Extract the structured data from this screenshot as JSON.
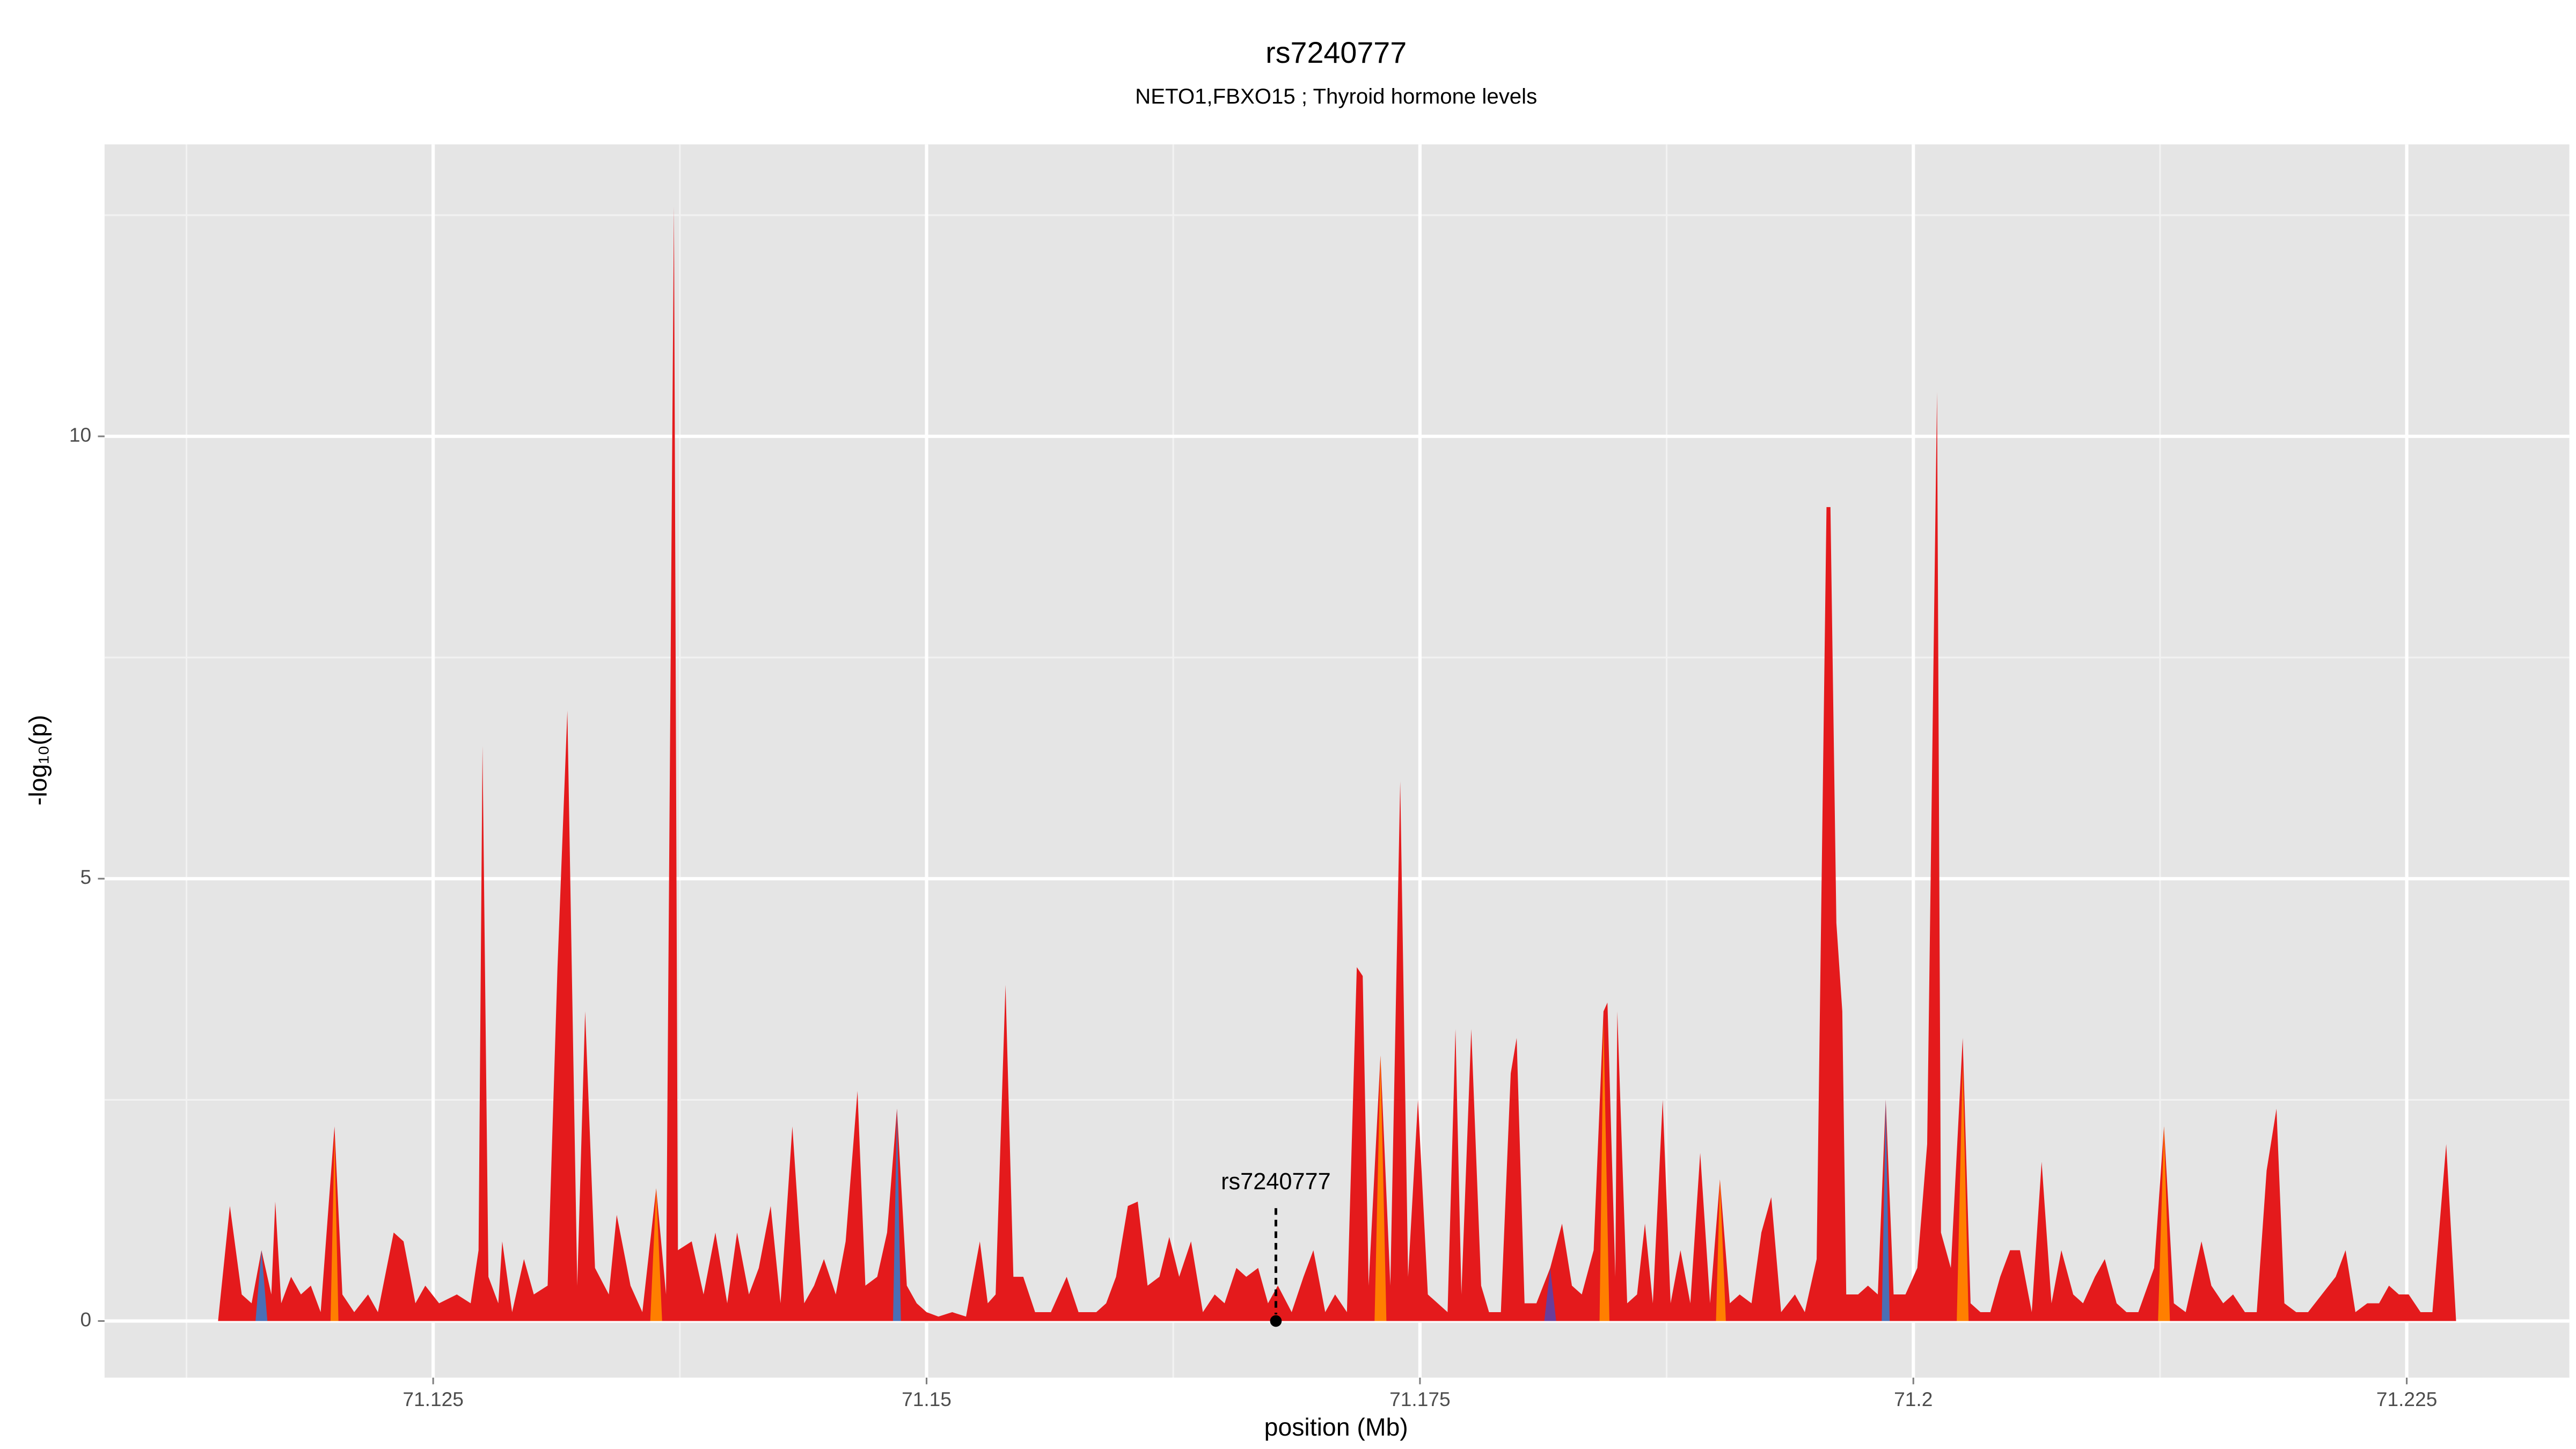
{
  "chart_data": {
    "type": "area",
    "title": "rs7240777",
    "subtitle": "NETO1,FBXO15 ; Thyroid hormone levels",
    "x_label": "position (Mb)",
    "y_label": "-log₁₀(p)",
    "xlim": [
      71.10835,
      71.23324
    ],
    "ylim": [
      -0.64,
      13.3
    ],
    "xticks": [
      71.125,
      71.15,
      71.175,
      71.2,
      71.225
    ],
    "yticks": [
      0,
      5,
      10
    ],
    "xminorticks": [
      71.1125,
      71.1375,
      71.1625,
      71.1875,
      71.2125
    ],
    "yminorticks": [
      2.5,
      7.5,
      12.5
    ],
    "grid": true,
    "series": [
      {
        "color": "#e41a1c",
        "x": [
          71.1141,
          71.1147,
          71.1153,
          71.1158,
          71.1163,
          71.1168,
          71.117,
          71.1173,
          71.1178,
          71.1183,
          71.1188,
          71.1193,
          71.12,
          71.1204,
          71.121,
          71.1217,
          71.1222,
          71.123,
          71.1235,
          71.1241,
          71.1246,
          71.1253,
          71.1262,
          71.1269,
          71.1273,
          71.1275,
          71.1278,
          71.1283,
          71.1285,
          71.129,
          71.1296,
          71.1301,
          71.1308,
          71.1313,
          71.1318,
          71.1323,
          71.1327,
          71.1332,
          71.1339,
          71.1343,
          71.135,
          71.1356,
          71.1363,
          71.1368,
          71.1372,
          71.1374,
          71.1381,
          71.1387,
          71.1393,
          71.1399,
          71.1404,
          71.141,
          71.1415,
          71.1421,
          71.1426,
          71.1432,
          71.1438,
          71.1443,
          71.1448,
          71.1454,
          71.1459,
          71.1465,
          71.1469,
          71.1475,
          71.148,
          71.1485,
          71.149,
          71.1495,
          71.15,
          71.1506,
          71.1513,
          71.152,
          71.1527,
          71.1531,
          71.1535,
          71.154,
          71.1544,
          71.1549,
          71.1555,
          71.1563,
          71.1571,
          71.1577,
          71.1586,
          71.1591,
          71.1596,
          71.1602,
          71.1607,
          71.1612,
          71.1618,
          71.1623,
          71.1628,
          71.1634,
          71.164,
          71.1646,
          71.1651,
          71.1657,
          71.1662,
          71.1668,
          71.1673,
          71.1678,
          71.1685,
          71.1691,
          71.1696,
          71.1702,
          71.1707,
          71.1713,
          71.1718,
          71.1721,
          71.1724,
          71.173,
          71.1735,
          71.174,
          71.1744,
          71.1749,
          71.1754,
          71.1759,
          71.1764,
          71.1768,
          71.1771,
          71.1776,
          71.1781,
          71.1785,
          71.1791,
          71.1796,
          71.1799,
          71.1803,
          71.1809,
          71.1816,
          71.1822,
          71.1827,
          71.1832,
          71.1838,
          71.1843,
          71.1845,
          71.1849,
          71.185,
          71.1855,
          71.186,
          71.1864,
          71.1868,
          71.1873,
          71.1877,
          71.1882,
          71.1887,
          71.1892,
          71.1897,
          71.1902,
          71.1907,
          71.1912,
          71.1918,
          71.1923,
          71.1928,
          71.1933,
          71.194,
          71.1945,
          71.1951,
          71.1956,
          71.1958,
          71.1961,
          71.1964,
          71.1966,
          71.1972,
          71.1977,
          71.1982,
          71.1986,
          71.199,
          71.1996,
          71.2002,
          71.2007,
          71.2012,
          71.2014,
          71.2019,
          71.2025,
          71.2029,
          71.2034,
          71.2039,
          71.2044,
          71.2049,
          71.2054,
          71.206,
          71.2065,
          71.207,
          71.2075,
          71.2081,
          71.2086,
          71.2092,
          71.2097,
          71.2103,
          71.2108,
          71.2114,
          71.2122,
          71.2127,
          71.2132,
          71.2138,
          71.2146,
          71.2151,
          71.2157,
          71.2162,
          71.2168,
          71.2174,
          71.2179,
          71.2184,
          71.2188,
          71.2194,
          71.22,
          71.2207,
          71.2214,
          71.2219,
          71.2224,
          71.223,
          71.2236,
          71.2241,
          71.2246,
          71.2251,
          71.2257,
          71.2263,
          71.227,
          71.2275
        ],
        "values": [
          0,
          1.3,
          0.3,
          0.2,
          0.8,
          0.3,
          1.35,
          0.2,
          0.5,
          0.3,
          0.4,
          0.1,
          2.2,
          0.3,
          0.1,
          0.3,
          0.1,
          1.0,
          0.9,
          0.2,
          0.4,
          0.2,
          0.3,
          0.2,
          0.8,
          6.5,
          0.5,
          0.2,
          0.9,
          0.1,
          0.7,
          0.3,
          0.4,
          4.0,
          6.9,
          0.4,
          3.5,
          0.6,
          0.3,
          1.2,
          0.4,
          0.1,
          1.5,
          0.3,
          12.6,
          0.8,
          0.9,
          0.3,
          1.0,
          0.2,
          1.0,
          0.3,
          0.6,
          1.3,
          0.2,
          2.2,
          0.2,
          0.4,
          0.7,
          0.3,
          0.9,
          2.6,
          0.4,
          0.5,
          1.0,
          2.4,
          0.4,
          0.2,
          0.1,
          0.05,
          0.1,
          0.05,
          0.9,
          0.2,
          0.3,
          3.8,
          0.5,
          0.5,
          0.1,
          0.1,
          0.5,
          0.1,
          0.1,
          0.2,
          0.5,
          1.3,
          1.35,
          0.4,
          0.5,
          0.95,
          0.5,
          0.9,
          0.1,
          0.3,
          0.2,
          0.6,
          0.5,
          0.6,
          0.2,
          0.4,
          0.1,
          0.5,
          0.8,
          0.1,
          0.3,
          0.1,
          4.0,
          3.9,
          0.4,
          3.0,
          0.4,
          6.1,
          0.5,
          2.5,
          0.3,
          0.2,
          0.1,
          3.3,
          0.3,
          3.3,
          0.4,
          0.1,
          0.1,
          2.8,
          3.2,
          0.2,
          0.2,
          0.6,
          1.1,
          0.4,
          0.3,
          0.8,
          3.5,
          3.6,
          0.5,
          3.5,
          0.2,
          0.3,
          1.1,
          0.2,
          2.5,
          0.2,
          0.8,
          0.2,
          1.9,
          0.2,
          1.6,
          0.2,
          0.3,
          0.2,
          1.0,
          1.4,
          0.1,
          0.3,
          0.1,
          0.7,
          9.2,
          9.2,
          4.5,
          3.5,
          0.3,
          0.3,
          0.4,
          0.3,
          2.5,
          0.3,
          0.3,
          0.6,
          2.0,
          10.5,
          1.0,
          0.6,
          3.2,
          0.2,
          0.1,
          0.1,
          0.5,
          0.8,
          0.8,
          0.1,
          1.8,
          0.2,
          0.8,
          0.3,
          0.2,
          0.5,
          0.7,
          0.2,
          0.1,
          0.1,
          0.6,
          2.2,
          0.2,
          0.1,
          0.9,
          0.4,
          0.2,
          0.3,
          0.1,
          0.1,
          1.7,
          2.4,
          0.2,
          0.1,
          0.1,
          0.3,
          0.5,
          0.8,
          0.1,
          0.2,
          0.2,
          0.4,
          0.3,
          0.3,
          0.1,
          0.1,
          2.0,
          0
        ]
      },
      {
        "color": "#ff7f00",
        "x": [
          71.1198,
          71.12,
          71.1202,
          71.1203,
          71.136,
          71.1363,
          71.1366,
          71.1367,
          71.1727,
          71.173,
          71.1733,
          71.1734,
          71.1841,
          71.1843,
          71.1846,
          71.1847,
          71.19,
          71.1902,
          71.1905,
          71.1906,
          71.2022,
          71.2025,
          71.2028,
          71.2029,
          71.2124,
          71.2127,
          71.213
        ],
        "values": [
          0,
          2.1,
          0,
          null,
          0,
          1.5,
          0,
          null,
          0,
          3.0,
          0,
          null,
          0,
          3.4,
          0,
          null,
          0,
          1.6,
          0,
          null,
          0,
          2.9,
          0,
          null,
          0,
          2.2,
          0
        ]
      },
      {
        "color": "#4a6fb5",
        "x": [
          71.116,
          71.1163,
          71.1166,
          71.1167,
          71.1483,
          71.1485,
          71.1487,
          71.1488,
          71.1984,
          71.1986,
          71.1988
        ],
        "values": [
          0,
          0.8,
          0,
          null,
          0,
          2.4,
          0,
          null,
          0,
          2.5,
          0
        ]
      },
      {
        "color": "#6a3d9a",
        "x": [
          71.1813,
          71.1816,
          71.1819
        ],
        "values": [
          0,
          0.6,
          0
        ]
      }
    ],
    "snp": {
      "label": "rs7240777",
      "x": 71.1677,
      "value": 0
    }
  }
}
